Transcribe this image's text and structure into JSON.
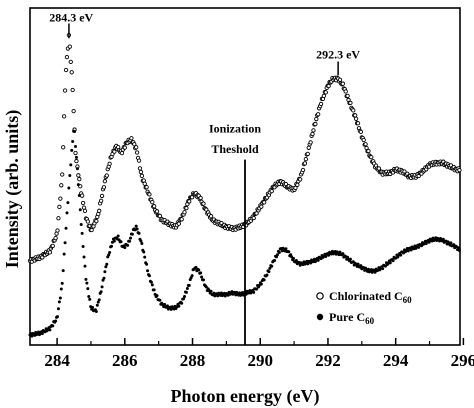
{
  "chart_data": {
    "type": "scatter",
    "title": "",
    "xlabel": "Photon energy (eV)",
    "ylabel": "Intensity (arb. units)",
    "xlim": [
      283.2,
      295.9
    ],
    "ylim": [
      0,
      100
    ],
    "xticks": [
      284,
      286,
      288,
      290,
      292,
      294,
      296
    ],
    "yticks_visible": false,
    "grid": false,
    "legend": {
      "position": "bottom-right",
      "entries": [
        {
          "label": "Chlorinated C",
          "subscript": "60",
          "marker": "open-circle"
        },
        {
          "label": "Pure C",
          "subscript": "60",
          "marker": "filled-circle"
        }
      ]
    },
    "annotations": [
      {
        "text": "284.3 eV",
        "x": 284.3,
        "y": 96
      },
      {
        "text": "292.3 eV",
        "x": 292.3,
        "y": 85
      },
      {
        "text": "Ionization",
        "x": 289.5,
        "y": 63
      },
      {
        "text": "Theshold",
        "x": 289.5,
        "y": 57
      }
    ],
    "vline": {
      "x": 289.55
    },
    "series": [
      {
        "name": "Chlorinated C60",
        "marker": "open-circle",
        "points": [
          [
            283.2,
            25
          ],
          [
            283.5,
            26
          ],
          [
            283.8,
            28
          ],
          [
            284.0,
            33
          ],
          [
            284.15,
            50
          ],
          [
            284.25,
            80
          ],
          [
            284.35,
            92
          ],
          [
            284.45,
            78
          ],
          [
            284.55,
            56
          ],
          [
            284.7,
            46
          ],
          [
            284.85,
            38
          ],
          [
            285.0,
            34
          ],
          [
            285.2,
            38
          ],
          [
            285.4,
            48
          ],
          [
            285.6,
            56
          ],
          [
            285.75,
            59
          ],
          [
            285.9,
            57
          ],
          [
            286.05,
            60
          ],
          [
            286.2,
            61
          ],
          [
            286.35,
            58
          ],
          [
            286.5,
            50
          ],
          [
            286.7,
            45
          ],
          [
            286.9,
            40
          ],
          [
            287.1,
            37
          ],
          [
            287.3,
            36
          ],
          [
            287.5,
            35
          ],
          [
            287.7,
            38
          ],
          [
            287.9,
            43
          ],
          [
            288.05,
            45
          ],
          [
            288.2,
            44
          ],
          [
            288.4,
            40
          ],
          [
            288.6,
            37
          ],
          [
            288.8,
            36
          ],
          [
            289.0,
            35
          ],
          [
            289.2,
            34.5
          ],
          [
            289.4,
            35
          ],
          [
            289.6,
            36
          ],
          [
            289.8,
            38
          ],
          [
            290.0,
            41
          ],
          [
            290.2,
            44
          ],
          [
            290.4,
            47
          ],
          [
            290.6,
            48.5
          ],
          [
            290.8,
            47
          ],
          [
            291.0,
            46
          ],
          [
            291.2,
            50
          ],
          [
            291.4,
            57
          ],
          [
            291.6,
            65
          ],
          [
            291.8,
            72
          ],
          [
            292.0,
            77
          ],
          [
            292.15,
            79
          ],
          [
            292.3,
            79
          ],
          [
            292.45,
            77
          ],
          [
            292.6,
            73
          ],
          [
            292.8,
            68
          ],
          [
            293.0,
            62
          ],
          [
            293.2,
            57
          ],
          [
            293.4,
            53
          ],
          [
            293.6,
            51
          ],
          [
            293.8,
            51
          ],
          [
            294.0,
            52
          ],
          [
            294.2,
            51.5
          ],
          [
            294.4,
            50
          ],
          [
            294.6,
            50
          ],
          [
            294.8,
            51.5
          ],
          [
            295.0,
            53.5
          ],
          [
            295.2,
            54
          ],
          [
            295.4,
            54
          ],
          [
            295.6,
            53
          ],
          [
            295.8,
            52
          ],
          [
            295.9,
            52
          ]
        ]
      },
      {
        "name": "Pure C60",
        "marker": "filled-circle",
        "points": [
          [
            283.2,
            3
          ],
          [
            283.5,
            3.5
          ],
          [
            283.8,
            5
          ],
          [
            284.0,
            8
          ],
          [
            284.15,
            18
          ],
          [
            284.3,
            40
          ],
          [
            284.42,
            56
          ],
          [
            284.5,
            65
          ],
          [
            284.6,
            52
          ],
          [
            284.72,
            35
          ],
          [
            284.85,
            20
          ],
          [
            285.0,
            11
          ],
          [
            285.15,
            10
          ],
          [
            285.3,
            16
          ],
          [
            285.5,
            26
          ],
          [
            285.65,
            31
          ],
          [
            285.8,
            32
          ],
          [
            285.95,
            29
          ],
          [
            286.1,
            30
          ],
          [
            286.25,
            34
          ],
          [
            286.35,
            35
          ],
          [
            286.5,
            30
          ],
          [
            286.7,
            21
          ],
          [
            286.9,
            15
          ],
          [
            287.1,
            12
          ],
          [
            287.3,
            11
          ],
          [
            287.5,
            11
          ],
          [
            287.7,
            13
          ],
          [
            287.9,
            18
          ],
          [
            288.05,
            23
          ],
          [
            288.2,
            22
          ],
          [
            288.4,
            17
          ],
          [
            288.6,
            15
          ],
          [
            288.8,
            15
          ],
          [
            289.0,
            15
          ],
          [
            289.2,
            15.5
          ],
          [
            289.4,
            15
          ],
          [
            289.6,
            15.5
          ],
          [
            289.8,
            16
          ],
          [
            290.0,
            18
          ],
          [
            290.2,
            21
          ],
          [
            290.4,
            25
          ],
          [
            290.6,
            28.5
          ],
          [
            290.8,
            28
          ],
          [
            291.0,
            25
          ],
          [
            291.2,
            24
          ],
          [
            291.4,
            24.5
          ],
          [
            291.6,
            25
          ],
          [
            291.8,
            26
          ],
          [
            292.0,
            27
          ],
          [
            292.2,
            27.5
          ],
          [
            292.4,
            27
          ],
          [
            292.6,
            25.5
          ],
          [
            292.8,
            24
          ],
          [
            293.0,
            23
          ],
          [
            293.2,
            22
          ],
          [
            293.4,
            22
          ],
          [
            293.6,
            23
          ],
          [
            293.8,
            24.5
          ],
          [
            294.0,
            26
          ],
          [
            294.2,
            27.5
          ],
          [
            294.4,
            28.5
          ],
          [
            294.6,
            29
          ],
          [
            294.8,
            30
          ],
          [
            295.0,
            31
          ],
          [
            295.2,
            31.5
          ],
          [
            295.4,
            31
          ],
          [
            295.6,
            30
          ],
          [
            295.8,
            29
          ],
          [
            295.9,
            28
          ]
        ]
      }
    ]
  }
}
